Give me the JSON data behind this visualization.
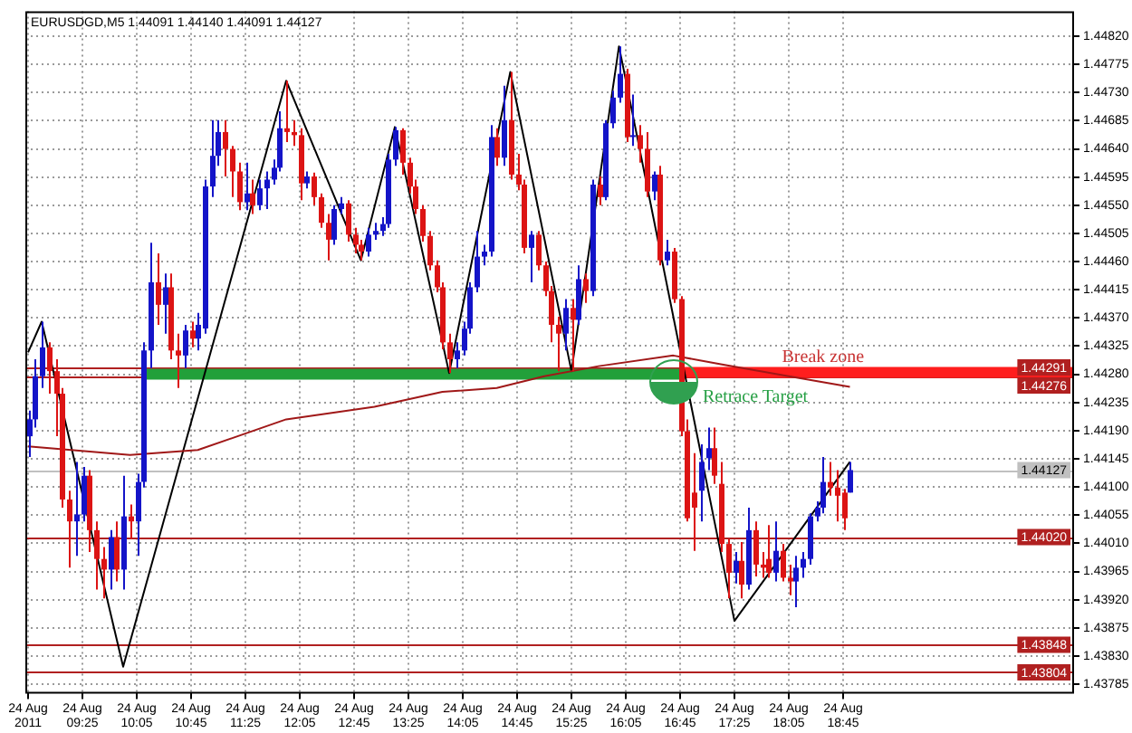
{
  "chart_data": {
    "type": "candlestick",
    "title": "EURUSDGD,M5 1.44091 1.44140 1.44091 1.44127",
    "x": [
      "2011-08-24T08:45",
      "2011-08-24T08:50",
      "2011-08-24T08:55",
      "2011-08-24T09:00",
      "2011-08-24T09:05",
      "2011-08-24T09:10",
      "2011-08-24T09:15",
      "2011-08-24T09:20",
      "2011-08-24T09:25",
      "2011-08-24T09:30",
      "2011-08-24T09:35",
      "2011-08-24T09:40",
      "2011-08-24T09:45",
      "2011-08-24T09:50",
      "2011-08-24T09:55",
      "2011-08-24T10:00",
      "2011-08-24T10:05",
      "2011-08-24T10:10",
      "2011-08-24T10:15",
      "2011-08-24T10:20",
      "2011-08-24T10:25",
      "2011-08-24T10:30",
      "2011-08-24T10:35",
      "2011-08-24T10:40",
      "2011-08-24T10:45",
      "2011-08-24T10:50",
      "2011-08-24T10:55",
      "2011-08-24T11:00",
      "2011-08-24T11:05",
      "2011-08-24T11:10",
      "2011-08-24T11:15",
      "2011-08-24T11:20",
      "2011-08-24T11:25",
      "2011-08-24T11:30",
      "2011-08-24T11:35",
      "2011-08-24T11:40",
      "2011-08-24T11:45",
      "2011-08-24T11:50",
      "2011-08-24T11:55",
      "2011-08-24T12:00",
      "2011-08-24T12:05",
      "2011-08-24T12:10",
      "2011-08-24T12:15",
      "2011-08-24T12:20",
      "2011-08-24T12:25",
      "2011-08-24T12:30",
      "2011-08-24T12:35",
      "2011-08-24T12:40",
      "2011-08-24T12:45",
      "2011-08-24T12:50",
      "2011-08-24T12:55",
      "2011-08-24T13:00",
      "2011-08-24T13:05",
      "2011-08-24T13:10",
      "2011-08-24T13:15",
      "2011-08-24T13:20",
      "2011-08-24T13:25",
      "2011-08-24T13:30",
      "2011-08-24T13:35",
      "2011-08-24T13:40",
      "2011-08-24T13:45",
      "2011-08-24T13:50",
      "2011-08-24T13:55",
      "2011-08-24T14:00",
      "2011-08-24T14:05",
      "2011-08-24T14:10",
      "2011-08-24T14:15",
      "2011-08-24T14:20",
      "2011-08-24T14:25",
      "2011-08-24T14:30",
      "2011-08-24T14:35",
      "2011-08-24T14:40",
      "2011-08-24T14:45",
      "2011-08-24T14:50",
      "2011-08-24T14:55",
      "2011-08-24T15:00",
      "2011-08-24T15:05",
      "2011-08-24T15:10",
      "2011-08-24T15:15",
      "2011-08-24T15:20",
      "2011-08-24T15:25",
      "2011-08-24T15:30",
      "2011-08-24T15:35",
      "2011-08-24T15:40",
      "2011-08-24T15:45",
      "2011-08-24T15:50",
      "2011-08-24T15:55",
      "2011-08-24T16:00",
      "2011-08-24T16:05",
      "2011-08-24T16:10",
      "2011-08-24T16:15",
      "2011-08-24T16:20",
      "2011-08-24T16:25",
      "2011-08-24T16:30",
      "2011-08-24T16:35",
      "2011-08-24T16:40",
      "2011-08-24T16:45",
      "2011-08-24T16:50",
      "2011-08-24T16:55",
      "2011-08-24T17:00",
      "2011-08-24T17:05",
      "2011-08-24T17:10",
      "2011-08-24T17:15",
      "2011-08-24T17:20",
      "2011-08-24T17:25",
      "2011-08-24T17:30",
      "2011-08-24T17:35",
      "2011-08-24T17:40",
      "2011-08-24T17:45",
      "2011-08-24T17:50",
      "2011-08-24T17:55",
      "2011-08-24T18:00",
      "2011-08-24T18:05",
      "2011-08-24T18:10",
      "2011-08-24T18:15",
      "2011-08-24T18:20",
      "2011-08-24T18:25",
      "2011-08-24T18:30",
      "2011-08-24T18:35",
      "2011-08-24T18:40",
      "2011-08-24T18:45",
      "2011-08-24T18:50"
    ],
    "ohlc": [
      [
        1.44181,
        1.44222,
        1.44148,
        1.44208
      ],
      [
        1.44208,
        1.44304,
        1.44195,
        1.44277
      ],
      [
        1.44277,
        1.44364,
        1.44258,
        1.44323
      ],
      [
        1.44323,
        1.44331,
        1.44249,
        1.44285
      ],
      [
        1.44285,
        1.44304,
        1.44181,
        1.44249
      ],
      [
        1.44249,
        1.44258,
        1.44067,
        1.4408
      ],
      [
        1.4408,
        1.44094,
        1.43971,
        1.44045
      ],
      [
        1.44045,
        1.4414,
        1.4399,
        1.44056
      ],
      [
        1.44056,
        1.44132,
        1.44045,
        1.44118
      ],
      [
        1.44118,
        1.44127,
        1.43996,
        1.44031
      ],
      [
        1.44031,
        1.44045,
        1.43936,
        1.43985
      ],
      [
        1.43985,
        1.44004,
        1.43922,
        1.43968
      ],
      [
        1.43968,
        1.44031,
        1.43936,
        1.4402
      ],
      [
        1.4402,
        1.44045,
        1.43949,
        1.43968
      ],
      [
        1.43968,
        1.44118,
        1.43936,
        1.44053
      ],
      [
        1.44053,
        1.44072,
        1.44017,
        1.44045
      ],
      [
        1.44045,
        1.44121,
        1.4399,
        1.44108
      ],
      [
        1.44108,
        1.44331,
        1.44099,
        1.44318
      ],
      [
        1.44318,
        1.4449,
        1.4429,
        1.44427
      ],
      [
        1.44427,
        1.44473,
        1.44359,
        1.44391
      ],
      [
        1.44391,
        1.44441,
        1.44345,
        1.44419
      ],
      [
        1.44419,
        1.44441,
        1.44304,
        1.44318
      ],
      [
        1.44318,
        1.44345,
        1.44258,
        1.4431
      ],
      [
        1.4431,
        1.44359,
        1.4429,
        1.4435
      ],
      [
        1.4435,
        1.44364,
        1.44323,
        1.44337
      ],
      [
        1.44337,
        1.44378,
        1.44318,
        1.44359
      ],
      [
        1.44353,
        1.44591,
        1.44345,
        1.4458
      ],
      [
        1.4458,
        1.44686,
        1.44563,
        1.44629
      ],
      [
        1.44629,
        1.44686,
        1.44613,
        1.44667
      ],
      [
        1.44667,
        1.44686,
        1.44596,
        1.4464
      ],
      [
        1.4464,
        1.44645,
        1.44563,
        1.44604
      ],
      [
        1.44604,
        1.44618,
        1.44542,
        1.44555
      ],
      [
        1.44555,
        1.44618,
        1.44542,
        1.44569
      ],
      [
        1.44569,
        1.44591,
        1.44536,
        1.4455
      ],
      [
        1.4455,
        1.44591,
        1.44542,
        1.44577
      ],
      [
        1.44577,
        1.44604,
        1.44544,
        1.44591
      ],
      [
        1.44591,
        1.44623,
        1.44583,
        1.4461
      ],
      [
        1.4461,
        1.447,
        1.44604,
        1.44673
      ],
      [
        1.44673,
        1.44749,
        1.44651,
        1.44667
      ],
      [
        1.44667,
        1.44686,
        1.44645,
        1.44662
      ],
      [
        1.44662,
        1.44673,
        1.44558,
        1.44585
      ],
      [
        1.44585,
        1.44604,
        1.44577,
        1.44596
      ],
      [
        1.44596,
        1.44602,
        1.4455,
        1.44563
      ],
      [
        1.44563,
        1.44569,
        1.44514,
        1.44522
      ],
      [
        1.44522,
        1.44536,
        1.44462,
        1.44495
      ],
      [
        1.44495,
        1.4455,
        1.44487,
        1.44544
      ],
      [
        1.44544,
        1.44563,
        1.44536,
        1.44553
      ],
      [
        1.44553,
        1.44558,
        1.44492,
        1.44503
      ],
      [
        1.44503,
        1.44514,
        1.44473,
        1.44487
      ],
      [
        1.44487,
        1.44495,
        1.44462,
        1.44476
      ],
      [
        1.44476,
        1.44514,
        1.44468,
        1.44503
      ],
      [
        1.44503,
        1.44522,
        1.44495,
        1.44509
      ],
      [
        1.44509,
        1.44531,
        1.44501,
        1.4452
      ],
      [
        1.4452,
        1.44632,
        1.44514,
        1.44623
      ],
      [
        1.44623,
        1.44675,
        1.44613,
        1.4467
      ],
      [
        1.4467,
        1.44673,
        1.44599,
        1.44618
      ],
      [
        1.44618,
        1.44626,
        1.44569,
        1.4458
      ],
      [
        1.4458,
        1.44591,
        1.44536,
        1.44544
      ],
      [
        1.44544,
        1.4455,
        1.44492,
        1.44501
      ],
      [
        1.44501,
        1.44509,
        1.44446,
        1.44454
      ],
      [
        1.44454,
        1.44462,
        1.44411,
        1.44419
      ],
      [
        1.44419,
        1.44427,
        1.4432,
        1.44331
      ],
      [
        1.44331,
        1.44345,
        1.44282,
        1.44304
      ],
      [
        1.44304,
        1.44331,
        1.4429,
        1.44318
      ],
      [
        1.44318,
        1.44364,
        1.4431,
        1.44353
      ],
      [
        1.44353,
        1.44427,
        1.44345,
        1.44419
      ],
      [
        1.44419,
        1.44509,
        1.44411,
        1.44468
      ],
      [
        1.44468,
        1.44487,
        1.44454,
        1.44476
      ],
      [
        1.44476,
        1.44678,
        1.44468,
        1.44659
      ],
      [
        1.44659,
        1.44673,
        1.44613,
        1.44626
      ],
      [
        1.44626,
        1.44741,
        1.44613,
        1.44686
      ],
      [
        1.44686,
        1.44763,
        1.44591,
        1.44599
      ],
      [
        1.44599,
        1.44632,
        1.44574,
        1.44583
      ],
      [
        1.44583,
        1.44591,
        1.44473,
        1.44482
      ],
      [
        1.44482,
        1.44509,
        1.44427,
        1.44503
      ],
      [
        1.44503,
        1.44509,
        1.44446,
        1.44454
      ],
      [
        1.44454,
        1.4446,
        1.44405,
        1.44413
      ],
      [
        1.44413,
        1.44421,
        1.44331,
        1.44359
      ],
      [
        1.44359,
        1.44372,
        1.44285,
        1.44345
      ],
      [
        1.44345,
        1.444,
        1.44318,
        1.44386
      ],
      [
        1.44386,
        1.444,
        1.44285,
        1.44367
      ],
      [
        1.44367,
        1.44454,
        1.44359,
        1.44432
      ],
      [
        1.44432,
        1.44441,
        1.44394,
        1.44413
      ],
      [
        1.44413,
        1.44591,
        1.44405,
        1.44583
      ],
      [
        1.44583,
        1.44596,
        1.4455,
        1.44563
      ],
      [
        1.44563,
        1.44686,
        1.44558,
        1.44681
      ],
      [
        1.44681,
        1.44733,
        1.44673,
        1.44722
      ],
      [
        1.44722,
        1.44804,
        1.44714,
        1.4476
      ],
      [
        1.4476,
        1.44768,
        1.44651,
        1.44659
      ],
      [
        1.44659,
        1.44727,
        1.44645,
        1.44662
      ],
      [
        1.44662,
        1.44678,
        1.44618,
        1.4464
      ],
      [
        1.4464,
        1.44667,
        1.44563,
        1.44572
      ],
      [
        1.44572,
        1.44604,
        1.44558,
        1.44599
      ],
      [
        1.44599,
        1.44613,
        1.44454,
        1.44462
      ],
      [
        1.44462,
        1.44495,
        1.44454,
        1.44476
      ],
      [
        1.44476,
        1.44482,
        1.44394,
        1.444
      ],
      [
        1.444,
        1.44405,
        1.44181,
        1.44189
      ],
      [
        1.44189,
        1.44208,
        1.44045,
        1.4405
      ],
      [
        1.44091,
        1.44154,
        1.43998,
        1.44067
      ],
      [
        1.44094,
        1.44168,
        1.44045,
        1.4414
      ],
      [
        1.44146,
        1.44195,
        1.44127,
        1.44162
      ],
      [
        1.44162,
        1.44195,
        1.44105,
        1.44118
      ],
      [
        1.44105,
        1.4414,
        1.43996,
        1.44009
      ],
      [
        1.44009,
        1.44017,
        1.43922,
        1.43963
      ],
      [
        1.43963,
        1.43996,
        1.43946,
        1.43982
      ],
      [
        1.43982,
        1.44012,
        1.43922,
        1.43944
      ],
      [
        1.43944,
        1.44067,
        1.43936,
        1.44031
      ],
      [
        1.44031,
        1.44045,
        1.43957,
        1.43976
      ],
      [
        1.43976,
        1.43996,
        1.43955,
        1.43971
      ],
      [
        1.43985,
        1.44039,
        1.43955,
        1.43963
      ],
      [
        1.43963,
        1.44045,
        1.43949,
        1.43998
      ],
      [
        1.43998,
        1.44009,
        1.43949,
        1.43955
      ],
      [
        1.43955,
        1.43976,
        1.43927,
        1.43949
      ],
      [
        1.43949,
        1.4399,
        1.43908,
        1.43971
      ],
      [
        1.43971,
        1.43996,
        1.43955,
        1.43985
      ],
      [
        1.43985,
        1.44058,
        1.43976,
        1.44053
      ],
      [
        1.44053,
        1.44077,
        1.44045,
        1.44067
      ],
      [
        1.44067,
        1.44148,
        1.44058,
        1.44108
      ],
      [
        1.44108,
        1.4414,
        1.44086,
        1.44099
      ],
      [
        1.44099,
        1.44127,
        1.44045,
        1.44086
      ],
      [
        1.44091,
        1.44097,
        1.44031,
        1.4405
      ],
      [
        1.44091,
        1.4414,
        1.44091,
        1.44127
      ]
    ],
    "colors": [
      "#1414c8",
      "#1414c8",
      "#1414c8",
      "#dc1414",
      "#dc1414",
      "#dc1414",
      "#dc1414",
      "#1414c8",
      "#1414c8",
      "#dc1414",
      "#dc1414",
      "#dc1414",
      "#1414c8",
      "#dc1414",
      "#1414c8",
      "#dc1414",
      "#1414c8",
      "#1414c8",
      "#1414c8",
      "#dc1414",
      "#1414c8",
      "#dc1414",
      "#dc1414",
      "#1414c8",
      "#dc1414",
      "#1414c8",
      "#1414c8",
      "#1414c8",
      "#1414c8",
      "#dc1414",
      "#dc1414",
      "#dc1414",
      "#1414c8",
      "#dc1414",
      "#1414c8",
      "#1414c8",
      "#1414c8",
      "#1414c8",
      "#dc1414",
      "#dc1414",
      "#dc1414",
      "#1414c8",
      "#dc1414",
      "#dc1414",
      "#dc1414",
      "#1414c8",
      "#1414c8",
      "#dc1414",
      "#dc1414",
      "#dc1414",
      "#1414c8",
      "#1414c8",
      "#1414c8",
      "#1414c8",
      "#1414c8",
      "#dc1414",
      "#dc1414",
      "#dc1414",
      "#dc1414",
      "#dc1414",
      "#dc1414",
      "#dc1414",
      "#dc1414",
      "#1414c8",
      "#1414c8",
      "#1414c8",
      "#1414c8",
      "#1414c8",
      "#1414c8",
      "#dc1414",
      "#1414c8",
      "#dc1414",
      "#dc1414",
      "#dc1414",
      "#1414c8",
      "#dc1414",
      "#dc1414",
      "#dc1414",
      "#dc1414",
      "#1414c8",
      "#dc1414",
      "#1414c8",
      "#dc1414",
      "#1414c8",
      "#dc1414",
      "#1414c8",
      "#1414c8",
      "#1414c8",
      "#dc1414",
      "#1414c8",
      "#dc1414",
      "#dc1414",
      "#1414c8",
      "#dc1414",
      "#1414c8",
      "#dc1414",
      "#dc1414",
      "#dc1414",
      "#dc1414",
      "#1414c8",
      "#1414c8",
      "#dc1414",
      "#dc1414",
      "#dc1414",
      "#1414c8",
      "#dc1414",
      "#1414c8",
      "#dc1414",
      "#dc1414",
      "#dc1414",
      "#1414c8",
      "#dc1414",
      "#dc1414",
      "#1414c8",
      "#1414c8",
      "#1414c8",
      "#1414c8",
      "#1414c8",
      "#dc1414",
      "#dc1414",
      "#dc1414",
      "#1414c8"
    ],
    "series": [
      {
        "type": "line",
        "color": "#22a03a",
        "x": [
          "2011-08-24T10:10",
          "2011-08-24T16:45"
        ],
        "values": [
          1.4428,
          1.4428
        ]
      },
      {
        "type": "line",
        "color": "#ff1e1e",
        "x": [
          "2011-08-24T16:45",
          "2011-08-24T21:35"
        ],
        "values": [
          1.44283,
          1.44283
        ]
      },
      {
        "type": "line",
        "color": "#a01818",
        "x": [
          "2011-08-24T08:45",
          "2011-08-24T10:00",
          "2011-08-24T10:50",
          "2011-08-24T11:55",
          "2011-08-24T13:00",
          "2011-08-24T13:50",
          "2011-08-24T14:30",
          "2011-08-24T15:05",
          "2011-08-24T15:45",
          "2011-08-24T16:40",
          "2011-08-24T17:15",
          "2011-08-24T18:05",
          "2011-08-24T18:50"
        ],
        "values": [
          1.44165,
          1.44151,
          1.44159,
          1.44208,
          1.44228,
          1.44252,
          1.44258,
          1.44277,
          1.44293,
          1.4431,
          1.44296,
          1.44277,
          1.4426
        ]
      },
      {
        "type": "line",
        "color": "#000000",
        "x": [
          "2011-08-24T08:45",
          "2011-08-24T08:55",
          "2011-08-24T09:55",
          "2011-08-24T11:55",
          "2011-08-24T12:50",
          "2011-08-24T13:15",
          "2011-08-24T13:55",
          "2011-08-24T14:40",
          "2011-08-24T15:25",
          "2011-08-24T16:00",
          "2011-08-24T17:25",
          "2011-08-24T18:50"
        ],
        "values": [
          1.44315,
          1.44364,
          1.43813,
          1.44749,
          1.44462,
          1.44675,
          1.44282,
          1.44763,
          1.44285,
          1.44804,
          1.43886,
          1.4414
        ]
      }
    ],
    "ref_lines": [
      {
        "axis": "y",
        "value": 1.44291,
        "label": "1.44291",
        "color": "#b02020"
      },
      {
        "axis": "y",
        "value": 1.44276,
        "label": "1.44276",
        "color": "#b02020"
      },
      {
        "axis": "y",
        "value": 1.44127,
        "label": "1.44127",
        "color": "#c0c0c0"
      },
      {
        "axis": "y",
        "value": 1.4402,
        "label": "1.44020",
        "color": "#b02020"
      },
      {
        "axis": "y",
        "value": 1.43848,
        "label": "1.43848",
        "color": "#b02020"
      },
      {
        "axis": "y",
        "value": 1.43804,
        "label": "1.43804",
        "color": "#b02020"
      }
    ],
    "annotations": [
      {
        "text": "Break zone",
        "x": "2011-08-24T18:00",
        "y": 1.443
      },
      "Retrace Target"
    ],
    "xlim": [
      "2011-08-24T08:43",
      "2011-08-24T21:35"
    ],
    "xticks": [
      {
        "value": "2011-08-24T08:45",
        "label": "24 Aug 2011"
      },
      {
        "value": "2011-08-24T09:25",
        "label": "24 Aug 09:25"
      },
      {
        "value": "2011-08-24T10:05",
        "label": "24 Aug 10:05"
      },
      {
        "value": "2011-08-24T10:45",
        "label": "24 Aug 10:45"
      },
      {
        "value": "2011-08-24T11:25",
        "label": "24 Aug 11:25"
      },
      {
        "value": "2011-08-24T12:05",
        "label": "24 Aug 12:05"
      },
      {
        "value": "2011-08-24T12:45",
        "label": "24 Aug 12:45"
      },
      {
        "value": "2011-08-24T13:25",
        "label": "24 Aug 13:25"
      },
      {
        "value": "2011-08-24T14:05",
        "label": "24 Aug 14:05"
      },
      {
        "value": "2011-08-24T14:45",
        "label": "24 Aug 14:45"
      },
      {
        "value": "2011-08-24T15:25",
        "label": "24 Aug 15:25"
      },
      {
        "value": "2011-08-24T16:05",
        "label": "24 Aug 16:05"
      },
      {
        "value": "2011-08-24T16:45",
        "label": "24 Aug 16:45"
      },
      {
        "value": "2011-08-24T17:25",
        "label": "24 Aug 17:25"
      },
      {
        "value": "2011-08-24T18:05",
        "label": "24 Aug 18:05"
      },
      {
        "value": "2011-08-24T18:45",
        "label": "24 Aug 18:45"
      }
    ],
    "ylim": [
      1.4377,
      1.4486
    ],
    "yticks": [
      {
        "value": 1.4482,
        "label": "1.44820"
      },
      {
        "value": 1.44775,
        "label": "1.44775"
      },
      {
        "value": 1.4473,
        "label": "1.44730"
      },
      {
        "value": 1.44685,
        "label": "1.44685"
      },
      {
        "value": 1.4464,
        "label": "1.44640"
      },
      {
        "value": 1.44595,
        "label": "1.44595"
      },
      {
        "value": 1.4455,
        "label": "1.44550"
      },
      {
        "value": 1.44505,
        "label": "1.44505"
      },
      {
        "value": 1.4446,
        "label": "1.44460"
      },
      {
        "value": 1.44415,
        "label": "1.44415"
      },
      {
        "value": 1.4437,
        "label": "1.44370"
      },
      {
        "value": 1.44325,
        "label": "1.44325"
      },
      {
        "value": 1.4428,
        "label": "1.44280"
      },
      {
        "value": 1.44235,
        "label": "1.44235"
      },
      {
        "value": 1.4419,
        "label": "1.44190"
      },
      {
        "value": 1.44145,
        "label": "1.44145"
      },
      {
        "value": 1.441,
        "label": "1.44100"
      },
      {
        "value": 1.44055,
        "label": "1.44055"
      },
      {
        "value": 1.4401,
        "label": "1.44010"
      },
      {
        "value": 1.43965,
        "label": "1.43965"
      },
      {
        "value": 1.4392,
        "label": "1.43920"
      },
      {
        "value": 1.43875,
        "label": "1.43875"
      },
      {
        "value": 1.4383,
        "label": "1.43830"
      },
      {
        "value": 1.43785,
        "label": "1.43785"
      }
    ],
    "grid": true,
    "legend": false
  }
}
